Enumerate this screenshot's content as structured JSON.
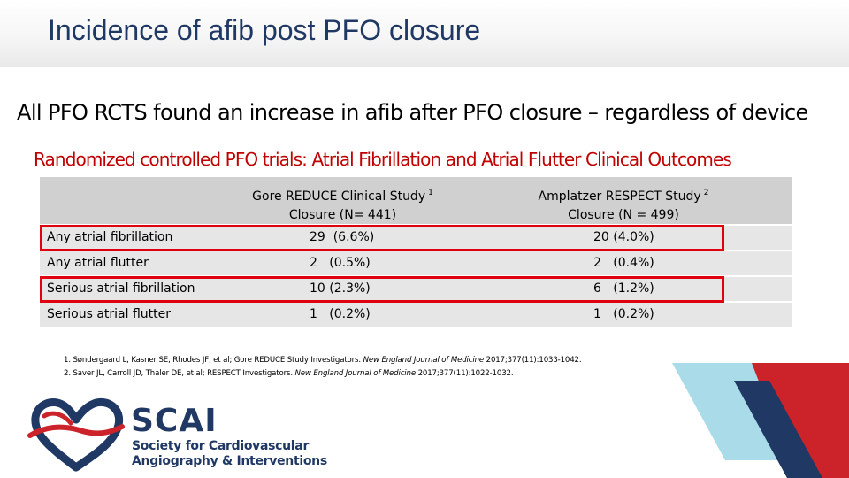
{
  "slide": {
    "title": "Incidence of afib post PFO closure",
    "subtitle": "All PFO RCTS found an increase in afib after PFO closure – regardless of device",
    "table_heading": "Randomized controlled PFO trials: Atrial Fibrillation and Atrial Flutter Clinical Outcomes"
  },
  "table": {
    "columns": [
      {
        "line1": "Gore REDUCE Clinical Study",
        "sup": "1",
        "line2": "Closure (N= 441)"
      },
      {
        "line1": "Amplatzer RESPECT Study",
        "sup": "2",
        "line2": "Closure (N = 499)"
      }
    ],
    "rows": [
      {
        "label": "Any atrial fibrillation",
        "reduce": "29  (6.6%)",
        "respect": "20 (4.0%)",
        "highlighted": true
      },
      {
        "label": "Any atrial flutter",
        "reduce": "2   (0.5%)",
        "respect": "2   (0.4%)",
        "highlighted": false
      },
      {
        "label": "Serious atrial fibrillation",
        "reduce": "10 (2.3%)",
        "respect": "6   (1.2%)",
        "highlighted": true
      },
      {
        "label": "Serious atrial flutter",
        "reduce": "1   (0.2%)",
        "respect": "1   (0.2%)",
        "highlighted": false
      }
    ]
  },
  "references": [
    {
      "prefix": "1. Søndergaard L, Kasner SE, Rhodes JF, et al; Gore REDUCE Study Investigators.",
      "journal": "New England Journal of Medicine",
      "suffix": "2017;377(11):1033-1042."
    },
    {
      "prefix": "2. Saver JL, Carroll JD, Thaler DE, et al; RESPECT Investigators.",
      "journal": "New England Journal of Medicine",
      "suffix": "2017;377(11):1022-1032."
    }
  ],
  "brand": {
    "name": "SCAI",
    "line1": "Society for Cardiovascular",
    "line2": "Angiography & Interventions",
    "logo_icon": "heart-swoosh-icon"
  },
  "colors": {
    "title": "#1f3864",
    "table_heading": "#c00000",
    "highlight_border": "#e1000f",
    "header_fill": "#d0d0d0",
    "row_fill": "#e6e6e6",
    "deco_light_blue": "#a9dbe8",
    "deco_red": "#cc2229",
    "deco_navy": "#1f3864"
  }
}
